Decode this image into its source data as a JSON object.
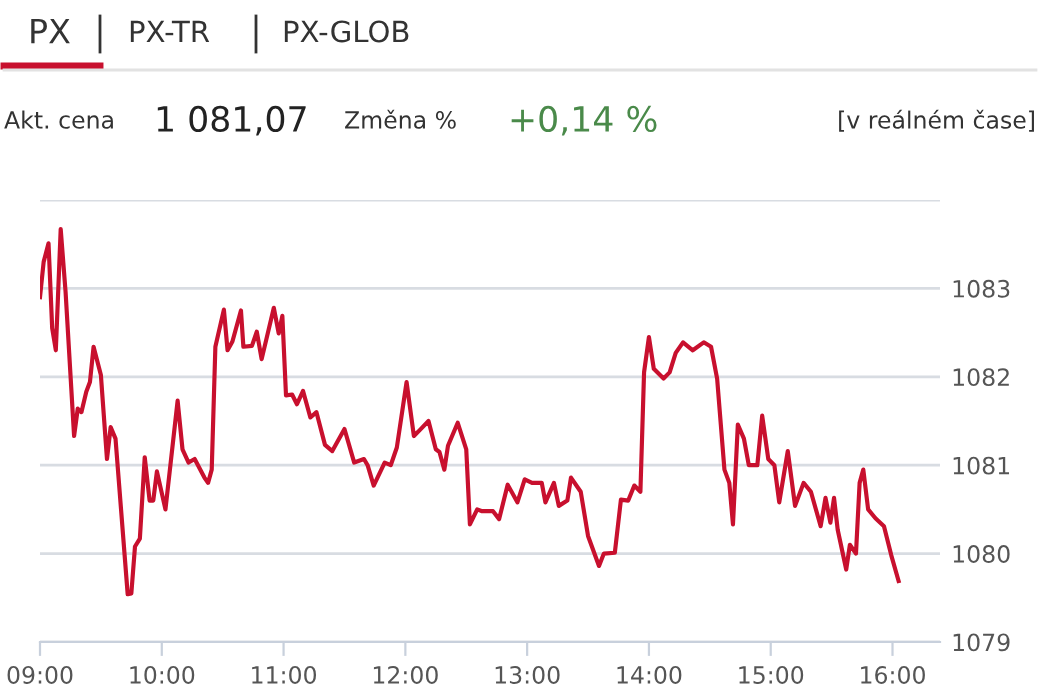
{
  "chart_data": {
    "type": "line",
    "title": "PX",
    "annotations": [
      "PX-TR",
      "PX-GLOB",
      "Akt. cena",
      "1 081,07",
      "Změna %",
      "+0,14 %",
      "[v reálném čase]"
    ],
    "series": [
      {
        "color": "#c8102e",
        "x": [
          9.0,
          9.03,
          9.07,
          9.1,
          9.13,
          9.17,
          9.21,
          9.28,
          9.31,
          9.34,
          9.38,
          9.41,
          9.44,
          9.5,
          9.55,
          9.58,
          9.62,
          9.72,
          9.75,
          9.78,
          9.82,
          9.86,
          9.9,
          9.93,
          9.96,
          10.03,
          10.13,
          10.17,
          10.22,
          10.27,
          10.35,
          10.38,
          10.41,
          10.44,
          10.51,
          10.54,
          10.58,
          10.65,
          10.67,
          10.74,
          10.78,
          10.82,
          10.92,
          10.96,
          10.99,
          11.02,
          11.07,
          11.11,
          11.16,
          11.22,
          11.27,
          11.34,
          11.4,
          11.5,
          11.58,
          11.66,
          11.69,
          11.74,
          11.83,
          11.88,
          11.93,
          12.01,
          12.07,
          12.12,
          12.19,
          12.25,
          12.28,
          12.32,
          12.35,
          12.43,
          12.5,
          12.53,
          12.59,
          12.63,
          12.72,
          12.77,
          12.84,
          12.92,
          12.98,
          13.04,
          13.12,
          13.15,
          13.22,
          13.26,
          13.33,
          13.36,
          13.44,
          13.5,
          13.59,
          13.63,
          13.72,
          13.77,
          13.83,
          13.88,
          13.93,
          13.96,
          14.0,
          14.04,
          14.12,
          14.17,
          14.22,
          14.28,
          14.36,
          14.45,
          14.51,
          14.56,
          14.62,
          14.66,
          14.69,
          14.73,
          14.78,
          14.82,
          14.89,
          14.93,
          14.98,
          15.03,
          15.07,
          15.14,
          15.2,
          15.27,
          15.33,
          15.41,
          15.45,
          15.49,
          15.52,
          15.55,
          15.62,
          15.65,
          15.7,
          15.73,
          15.76,
          15.8,
          15.86,
          15.93,
          15.99,
          16.05
        ],
        "values": [
          1082.9,
          1083.3,
          1083.51,
          1082.55,
          1082.3,
          1083.67,
          1082.96,
          1081.33,
          1081.64,
          1081.6,
          1081.83,
          1081.94,
          1082.34,
          1082.02,
          1081.07,
          1081.43,
          1081.3,
          1079.54,
          1079.55,
          1080.08,
          1080.17,
          1081.09,
          1080.6,
          1080.6,
          1080.93,
          1080.5,
          1081.73,
          1081.18,
          1081.03,
          1081.07,
          1080.86,
          1080.8,
          1080.95,
          1082.34,
          1082.76,
          1082.3,
          1082.4,
          1082.75,
          1082.34,
          1082.35,
          1082.51,
          1082.2,
          1082.78,
          1082.49,
          1082.69,
          1081.79,
          1081.8,
          1081.69,
          1081.84,
          1081.54,
          1081.6,
          1081.23,
          1081.16,
          1081.41,
          1081.03,
          1081.07,
          1081.0,
          1080.77,
          1081.03,
          1081.0,
          1081.2,
          1081.94,
          1081.33,
          1081.4,
          1081.5,
          1081.18,
          1081.15,
          1080.95,
          1081.22,
          1081.48,
          1081.18,
          1080.33,
          1080.5,
          1080.48,
          1080.48,
          1080.39,
          1080.78,
          1080.58,
          1080.84,
          1080.8,
          1080.8,
          1080.58,
          1080.8,
          1080.54,
          1080.6,
          1080.86,
          1080.7,
          1080.2,
          1079.86,
          1080.0,
          1080.01,
          1080.61,
          1080.6,
          1080.77,
          1080.7,
          1082.05,
          1082.45,
          1082.09,
          1081.98,
          1082.05,
          1082.27,
          1082.39,
          1082.3,
          1082.39,
          1082.34,
          1081.98,
          1080.95,
          1080.8,
          1080.33,
          1081.46,
          1081.3,
          1081.0,
          1081.0,
          1081.56,
          1081.07,
          1081.0,
          1080.58,
          1081.16,
          1080.54,
          1080.8,
          1080.7,
          1080.31,
          1080.63,
          1080.35,
          1080.63,
          1080.27,
          1079.82,
          1080.1,
          1080.0,
          1080.8,
          1080.95,
          1080.5,
          1080.4,
          1080.31,
          1079.98,
          1079.69
        ]
      }
    ],
    "xlim": [
      9.0,
      16.39
    ],
    "xticks": [
      {
        "value": 9,
        "label": "09:00"
      },
      {
        "value": 10,
        "label": "10:00"
      },
      {
        "value": 11,
        "label": "11:00"
      },
      {
        "value": 12,
        "label": "12:00"
      },
      {
        "value": 13,
        "label": "13:00"
      },
      {
        "value": 14,
        "label": "14:00"
      },
      {
        "value": 15,
        "label": "15:00"
      },
      {
        "value": 16,
        "label": "16:00"
      }
    ],
    "ylim": [
      1079,
      1084
    ],
    "yticks": [
      1079,
      1080,
      1081,
      1082,
      1083,
      {
        "value": 1084,
        "label": null
      }
    ],
    "grid": "y",
    "legend": false
  }
}
